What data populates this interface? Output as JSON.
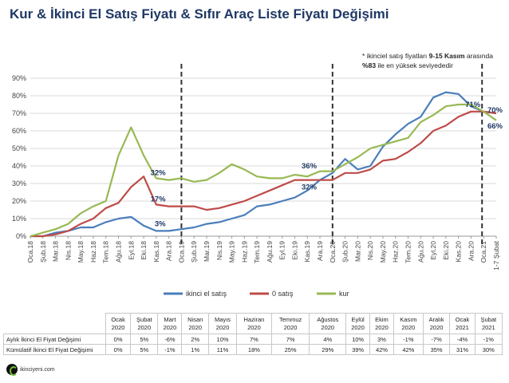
{
  "title": "Kur & İkinci El Satış Fiyatı & Sıfır Araç Liste Fiyatı Değişimi",
  "note": {
    "line1_prefix": "* ikinciel satış fiyatları ",
    "line1_bold": "9-15 Kasım",
    "line1_suffix": " arasında",
    "line2_bold": "%83",
    "line2_suffix": " ile en yüksek seviyededir"
  },
  "chart_data": {
    "type": "line",
    "ylim": [
      0,
      90
    ],
    "yticks": [
      "0%",
      "10%",
      "20%",
      "30%",
      "40%",
      "50%",
      "60%",
      "70%",
      "80%",
      "90%"
    ],
    "grid": true,
    "legend_position": "bottom",
    "xticks": [
      "Oca.18",
      "Şub.18",
      "Mar.18",
      "Nis.18",
      "May.18",
      "Haz.18",
      "Tem.18",
      "Ağu.18",
      "Eyl.18",
      "Eki.18",
      "Kas.18",
      "Ara.18",
      "Oca.19",
      "Şub.19",
      "Mar.19",
      "Nis.19",
      "May.19",
      "Haz.19",
      "Tem.19",
      "Ağu.19",
      "Eyl.19",
      "Eki.19",
      "Kas.19",
      "Ara.19",
      "Oca.20",
      "Şub.20",
      "Mar.20",
      "Nis.20",
      "May.20",
      "Haz.20",
      "Tem.20",
      "Ağu.20",
      "Eyl.20",
      "Eki.20",
      "Kas.20",
      "Ara.20",
      "Oca.21",
      "1-7 Şubat"
    ],
    "series": [
      {
        "name": "ikinci el satış",
        "color": "#4a7ebb",
        "values": [
          0,
          0,
          2,
          3,
          5,
          5,
          8,
          10,
          11,
          6,
          3,
          3,
          4,
          5,
          7,
          8,
          10,
          12,
          17,
          18,
          20,
          22,
          26,
          32,
          36,
          44,
          38,
          40,
          51,
          58,
          64,
          68,
          79,
          82,
          81,
          74,
          71,
          70
        ]
      },
      {
        "name": "0 satış",
        "color": "#be4b48",
        "values": [
          0,
          0,
          1,
          3,
          7,
          10,
          16,
          19,
          28,
          34,
          18,
          17,
          17,
          17,
          15,
          16,
          18,
          20,
          23,
          26,
          29,
          32,
          32,
          32,
          32,
          36,
          36,
          38,
          43,
          44,
          48,
          53,
          60,
          63,
          68,
          71,
          71,
          70
        ]
      },
      {
        "name": "kur",
        "color": "#98b954",
        "values": [
          0,
          2,
          4,
          7,
          13,
          17,
          20,
          46,
          62,
          46,
          33,
          32,
          33,
          31,
          32,
          36,
          41,
          38,
          34,
          33,
          33,
          35,
          34,
          37,
          37,
          41,
          45,
          50,
          52,
          54,
          56,
          65,
          69,
          74,
          75,
          75,
          71,
          66
        ]
      }
    ],
    "vlines_at": [
      12,
      24,
      36
    ],
    "annotations": [
      {
        "text": "32%",
        "at_index": 11,
        "y": 32,
        "side": "above"
      },
      {
        "text": "17%",
        "at_index": 11,
        "y": 17,
        "side": "above"
      },
      {
        "text": "3%",
        "at_index": 11,
        "y": 3,
        "side": "above"
      },
      {
        "text": "36%",
        "at_index": 23,
        "y": 36,
        "side": "above"
      },
      {
        "text": "32%",
        "at_index": 23,
        "y": 32,
        "side": "below"
      },
      {
        "text": "71%",
        "at_index": 36,
        "y": 71,
        "side": "above"
      },
      {
        "text": "70%",
        "at_index": 37,
        "y": 70,
        "side": "right"
      },
      {
        "text": "66%",
        "at_index": 37,
        "y": 66,
        "side": "right-below"
      }
    ]
  },
  "table": {
    "columns": [
      [
        "Ocak",
        "2020"
      ],
      [
        "Şubat",
        "2020"
      ],
      [
        "Mart",
        "2020"
      ],
      [
        "Nisan",
        "2020"
      ],
      [
        "Mayıs",
        "2020"
      ],
      [
        "Haziran",
        "2020"
      ],
      [
        "Temmuz",
        "2020"
      ],
      [
        "Ağustos",
        "2020"
      ],
      [
        "Eylül",
        "2020"
      ],
      [
        "Ekim",
        "2020"
      ],
      [
        "Kasım",
        "2020"
      ],
      [
        "Aralık",
        "2020"
      ],
      [
        "Ocak",
        "2021"
      ],
      [
        "Şubat",
        "2021"
      ]
    ],
    "rows": [
      {
        "label": "Aylık İkinci El Fiyat Değişimi",
        "values": [
          "0%",
          "5%",
          "-6%",
          "2%",
          "10%",
          "7%",
          "7%",
          "4%",
          "10%",
          "3%",
          "-1%",
          "-7%",
          "-4%",
          "-1%"
        ]
      },
      {
        "label": "Kümülatif İkinci El Fiyat Değişimi",
        "values": [
          "0%",
          "5%",
          "-1%",
          "1%",
          "11%",
          "18%",
          "25%",
          "29%",
          "39%",
          "42%",
          "42%",
          "35%",
          "31%",
          "30%"
        ]
      }
    ]
  },
  "logo": {
    "text": "ikinciyeni.com"
  }
}
